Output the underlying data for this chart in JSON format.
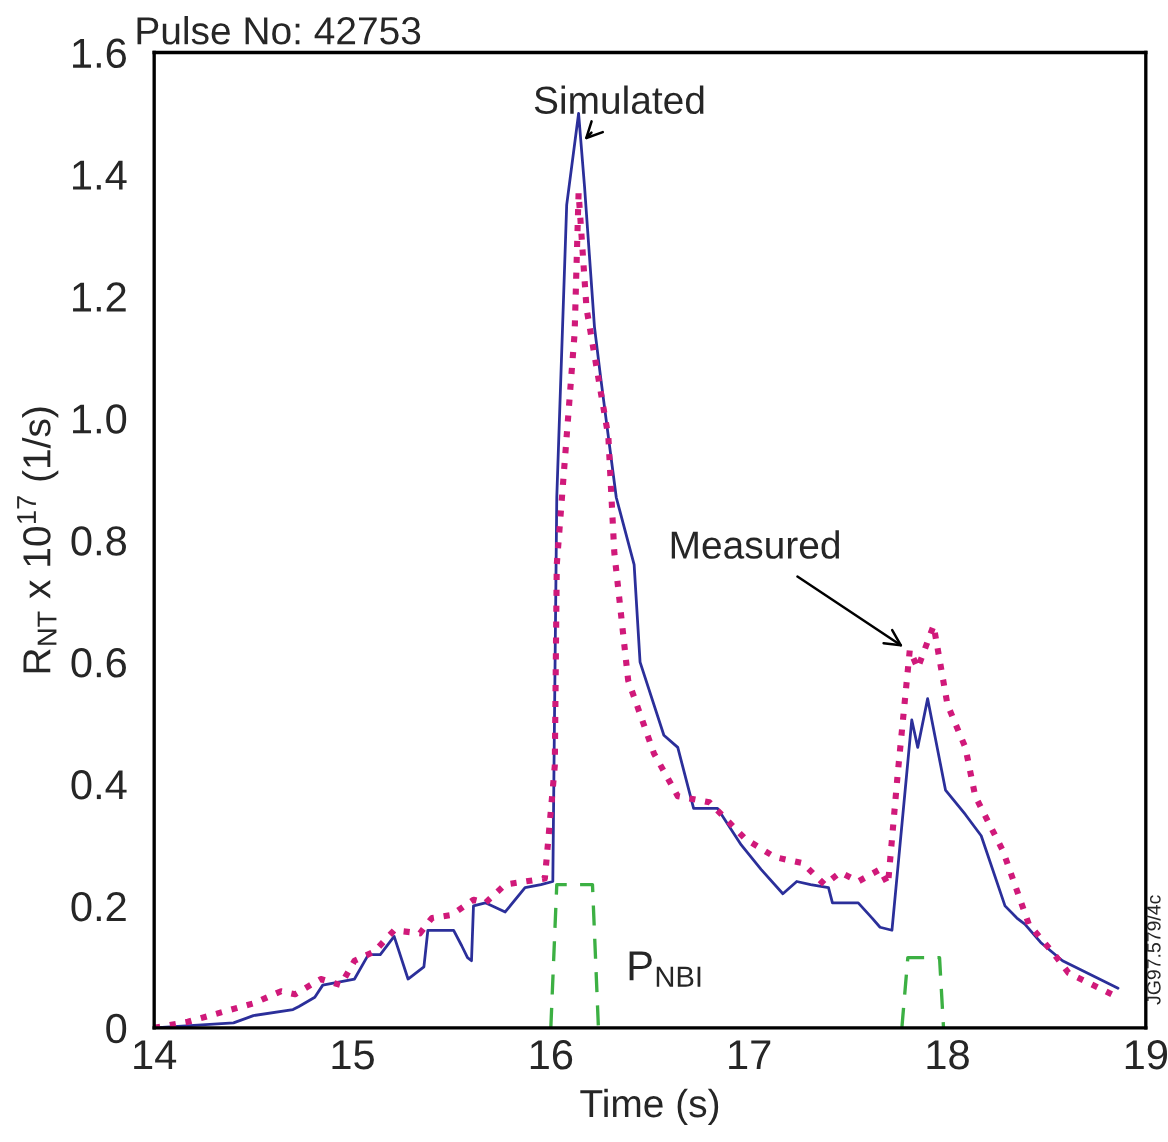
{
  "chart_data": {
    "type": "line",
    "title": "Pulse No: 42753",
    "xlabel": "Time (s)",
    "ylabel": "R$_{NT}$ x 10$^{17}$ (1/s)",
    "xlim": [
      14,
      19
    ],
    "xticks": [
      14,
      15,
      16,
      17,
      18,
      19
    ],
    "ylim": [
      0,
      1.6
    ],
    "yticks": [
      0,
      0.2,
      0.4,
      0.6,
      0.8,
      {
        "value": 1.0,
        "label": "1.0"
      },
      1.2,
      1.4,
      1.6
    ],
    "grid": false,
    "legend": false,
    "series": [
      {
        "color": "#2b2f9a",
        "line_style": "solid",
        "x": [
          14.0,
          14.4,
          14.5,
          14.7,
          14.73,
          14.81,
          14.85,
          15.01,
          15.08,
          15.14,
          15.21,
          15.28,
          15.36,
          15.38,
          15.51,
          15.55,
          15.58,
          15.6,
          15.61,
          15.67,
          15.77,
          15.87,
          15.95,
          16.01,
          16.03,
          16.08,
          16.14,
          16.17,
          16.22,
          16.25,
          16.33,
          16.42,
          16.45,
          16.57,
          16.64,
          16.72,
          16.84,
          16.96,
          17.06,
          17.17,
          17.24,
          17.31,
          17.4,
          17.42,
          17.55,
          17.62,
          17.66,
          17.72,
          17.82,
          17.85,
          17.9,
          17.99,
          18.09,
          18.17,
          18.29,
          18.35,
          18.39,
          18.47,
          18.58,
          18.86
        ],
        "values": [
          0,
          0.008,
          0.02,
          0.03,
          0.035,
          0.05,
          0.07,
          0.08,
          0.12,
          0.12,
          0.15,
          0.08,
          0.1,
          0.16,
          0.16,
          0.135,
          0.115,
          0.11,
          0.2,
          0.205,
          0.19,
          0.23,
          0.235,
          0.24,
          0.87,
          1.35,
          1.5,
          1.38,
          1.15,
          1.07,
          0.87,
          0.76,
          0.6,
          0.48,
          0.46,
          0.36,
          0.36,
          0.3,
          0.26,
          0.22,
          0.24,
          0.235,
          0.23,
          0.205,
          0.205,
          0.18,
          0.165,
          0.16,
          0.505,
          0.46,
          0.54,
          0.39,
          0.35,
          0.315,
          0.2,
          0.18,
          0.17,
          0.14,
          0.11,
          0.065
        ]
      },
      {
        "color": "#d0197a",
        "line_style": "dotted",
        "x": [
          14.0,
          14.17,
          14.5,
          14.64,
          14.71,
          14.84,
          14.94,
          15.01,
          15.11,
          15.21,
          15.34,
          15.4,
          15.5,
          15.61,
          15.67,
          15.77,
          15.97,
          16.02,
          16.03,
          16.12,
          16.14,
          16.18,
          16.29,
          16.32,
          16.39,
          16.52,
          16.64,
          16.8,
          16.98,
          17.13,
          17.27,
          17.38,
          17.46,
          17.55,
          17.66,
          17.7,
          17.75,
          17.81,
          17.85,
          17.93,
          18.0,
          18.09,
          18.14,
          18.28,
          18.41,
          18.54,
          18.61,
          18.86
        ],
        "values": [
          0,
          0.01,
          0.04,
          0.06,
          0.055,
          0.08,
          0.07,
          0.11,
          0.125,
          0.16,
          0.155,
          0.18,
          0.185,
          0.21,
          0.205,
          0.235,
          0.245,
          0.43,
          0.76,
          1.14,
          1.37,
          1.18,
          0.97,
          0.78,
          0.57,
          0.45,
          0.38,
          0.37,
          0.31,
          0.28,
          0.27,
          0.235,
          0.255,
          0.24,
          0.26,
          0.235,
          0.42,
          0.62,
          0.59,
          0.66,
          0.53,
          0.46,
          0.38,
          0.29,
          0.17,
          0.12,
          0.09,
          0.05
        ]
      },
      {
        "name": "P$_{NBI}$",
        "color": "#3cb043",
        "line_style": "dashed",
        "x": [
          16.0,
          16.03,
          16.21,
          16.24,
          null,
          17.77,
          17.8,
          17.96,
          17.98
        ],
        "values": [
          0,
          0.235,
          0.235,
          0,
          null,
          0,
          0.115,
          0.115,
          0
        ]
      }
    ],
    "annotations": [
      {
        "text": "Simulated",
        "x": 16.15,
        "y": 1.45
      },
      {
        "text": "Measured",
        "x": 17.8,
        "y": 0.62
      },
      "JG97.579/4c"
    ]
  }
}
